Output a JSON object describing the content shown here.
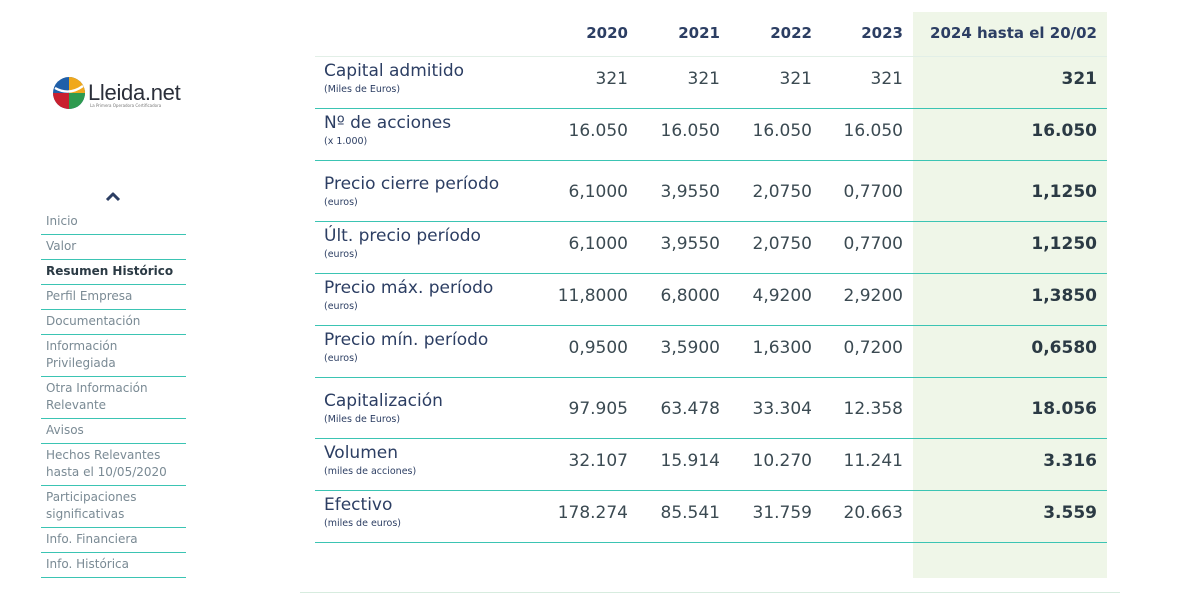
{
  "logo": {
    "name": "Lleida.net",
    "tagline": "La Primera Operadora Certificadora"
  },
  "sidebar": {
    "items": [
      {
        "label": "Inicio",
        "active": false
      },
      {
        "label": "Valor",
        "active": false
      },
      {
        "label": "Resumen Histórico",
        "active": true
      },
      {
        "label": "Perfil Empresa",
        "active": false
      },
      {
        "label": "Documentación",
        "active": false
      },
      {
        "label": "Información Privilegiada",
        "active": false
      },
      {
        "label": "Otra Información Relevante",
        "active": false
      },
      {
        "label": "Avisos",
        "active": false
      },
      {
        "label": "Hechos Relevantes hasta el 10/05/2020",
        "active": false
      },
      {
        "label": "Participaciones significativas",
        "active": false
      },
      {
        "label": "Info. Financiera",
        "active": false
      },
      {
        "label": "Info. Histórica",
        "active": false
      }
    ]
  },
  "table": {
    "headers": [
      "2020",
      "2021",
      "2022",
      "2023",
      "2024 hasta el 20/02"
    ],
    "rows": [
      {
        "label": "Capital admitido",
        "unit": "(Miles de Euros)",
        "values": [
          "321",
          "321",
          "321",
          "321",
          "321"
        ]
      },
      {
        "label": "Nº de acciones",
        "unit": "(x 1.000)",
        "values": [
          "16.050",
          "16.050",
          "16.050",
          "16.050",
          "16.050"
        ]
      },
      {
        "label": "Precio cierre período",
        "unit": "(euros)",
        "values": [
          "6,1000",
          "3,9550",
          "2,0750",
          "0,7700",
          "1,1250"
        ]
      },
      {
        "label": "Últ. precio período",
        "unit": "(euros)",
        "values": [
          "6,1000",
          "3,9550",
          "2,0750",
          "0,7700",
          "1,1250"
        ]
      },
      {
        "label": "Precio máx. período",
        "unit": "(euros)",
        "values": [
          "11,8000",
          "6,8000",
          "4,9200",
          "2,9200",
          "1,3850"
        ]
      },
      {
        "label": "Precio mín. período",
        "unit": "(euros)",
        "values": [
          "0,9500",
          "3,5900",
          "1,6300",
          "0,7200",
          "0,6580"
        ]
      },
      {
        "label": "Capitalización",
        "unit": "(Miles de Euros)",
        "values": [
          "97.905",
          "63.478",
          "33.304",
          "12.358",
          "18.056"
        ]
      },
      {
        "label": "Volumen",
        "unit": "(miles de acciones)",
        "values": [
          "32.107",
          "15.914",
          "10.270",
          "11.241",
          "3.316"
        ]
      },
      {
        "label": "Efectivo",
        "unit": "(miles de euros)",
        "values": [
          "178.274",
          "85.541",
          "31.759",
          "20.663",
          "3.559"
        ]
      }
    ]
  },
  "colors": {
    "accent": "#3bc4b3",
    "navy": "#2c3e63",
    "highlight": "#eff6e8"
  },
  "icons": {
    "collapse": "chevron-up-icon",
    "logo": "lleida-ball-icon"
  }
}
